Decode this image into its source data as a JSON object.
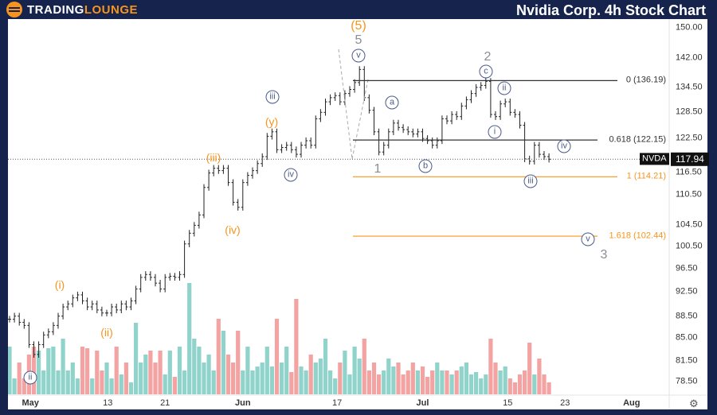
{
  "header": {
    "brand_part1": "TRADING",
    "brand_part2": "LOUNGE",
    "title": "Nvidia Corp. 4h Stock Chart"
  },
  "chart_data": {
    "type": "ohlc",
    "ticker": "NVDA",
    "last_price": "117.94",
    "y_scale": "log",
    "ylim": [
      77,
      152
    ],
    "y_ticks": [
      "150.00",
      "142.00",
      "134.50",
      "128.50",
      "122.50",
      "116.50",
      "110.50",
      "104.50",
      "100.50",
      "96.50",
      "92.50",
      "88.50",
      "85.00",
      "81.50",
      "78.50"
    ],
    "x_ticks": [
      {
        "label": "May",
        "bar": 4.3
      },
      {
        "label": "13",
        "bar": 20.2
      },
      {
        "label": "21",
        "bar": 32
      },
      {
        "label": "Jun",
        "bar": 48
      },
      {
        "label": "17",
        "bar": 67.4
      },
      {
        "label": "Jul",
        "bar": 85
      },
      {
        "label": "15",
        "bar": 102.5
      },
      {
        "label": "23",
        "bar": 114.3
      },
      {
        "label": "Aug",
        "bar": 128
      }
    ],
    "closes": [
      88,
      88.5,
      87.5,
      87,
      84,
      82.5,
      84,
      85.5,
      86,
      87,
      88.5,
      90,
      90.5,
      91.5,
      92,
      91,
      90,
      90.5,
      89.5,
      89,
      89,
      90,
      89.5,
      90.5,
      90,
      91,
      93,
      95,
      95.5,
      95,
      94,
      93,
      95,
      95.2,
      95,
      95.5,
      101,
      103,
      104.5,
      106.5,
      112,
      115,
      116,
      115.5,
      116,
      113,
      109,
      108,
      113,
      114.5,
      115.5,
      117,
      118.5,
      123,
      124,
      120,
      120.5,
      121,
      120,
      119,
      121,
      122,
      121,
      127,
      128.5,
      131,
      132,
      132.5,
      131,
      133,
      134,
      135.7,
      139,
      132,
      129,
      124,
      119.5,
      121,
      124,
      126,
      125,
      124.5,
      124,
      123.5,
      124,
      122.5,
      122,
      121,
      122,
      127,
      126.5,
      128,
      127.5,
      130,
      131.5,
      133,
      134.5,
      135,
      136,
      128,
      127.5,
      130.5,
      131,
      128.5,
      128,
      125.5,
      118,
      117.5,
      121,
      119,
      118.5,
      117.94
    ],
    "volumes": [
      60,
      20,
      40,
      20,
      50,
      60,
      55,
      30,
      58,
      60,
      30,
      70,
      30,
      40,
      20,
      60,
      58,
      20,
      55,
      30,
      40,
      20,
      60,
      25,
      40,
      15,
      90,
      40,
      50,
      55,
      40,
      55,
      25,
      55,
      22,
      60,
      30,
      140,
      70,
      60,
      40,
      50,
      30,
      95,
      80,
      50,
      40,
      80,
      30,
      60,
      30,
      35,
      40,
      60,
      35,
      95,
      40,
      60,
      28,
      120,
      35,
      30,
      50,
      40,
      45,
      70,
      30,
      20,
      40,
      55,
      25,
      60,
      45,
      70,
      30,
      40,
      25,
      30,
      45,
      35,
      40,
      25,
      30,
      40,
      30,
      35,
      22,
      30,
      40,
      30,
      30,
      25,
      30,
      35,
      40,
      25,
      28,
      20,
      25,
      70,
      40,
      30,
      35,
      20,
      15,
      25,
      30,
      65,
      25,
      45,
      25,
      15
    ],
    "fib_levels": [
      {
        "label": "0 (136.19)",
        "value": 136.19,
        "color": "#333333"
      },
      {
        "label": "0.618 (122.15)",
        "value": 122.15,
        "color": "#333333"
      },
      {
        "label": "1 (114.21)",
        "value": 114.21,
        "color": "#f7941d"
      },
      {
        "label": "1.618 (102.44)",
        "value": 102.44,
        "color": "#f7941d"
      }
    ],
    "colors": {
      "up_volume": "#8fd3cb",
      "down_volume": "#f4a3a3",
      "bars": "#222222",
      "fib_orange": "#f7941d",
      "wave_blue": "#4a5a8c"
    }
  },
  "waves": {
    "orange": [
      "(i)",
      "(ii)",
      "(iii)",
      "(iv)",
      "(y)",
      "(5)"
    ],
    "gray": [
      "5",
      "1",
      "2",
      "3"
    ],
    "circled": [
      "ii",
      "iii",
      "iv",
      "v",
      "a",
      "b",
      "c",
      "ii",
      "i",
      "iii",
      "iv",
      "v"
    ]
  },
  "settings_icon": "gear-icon"
}
